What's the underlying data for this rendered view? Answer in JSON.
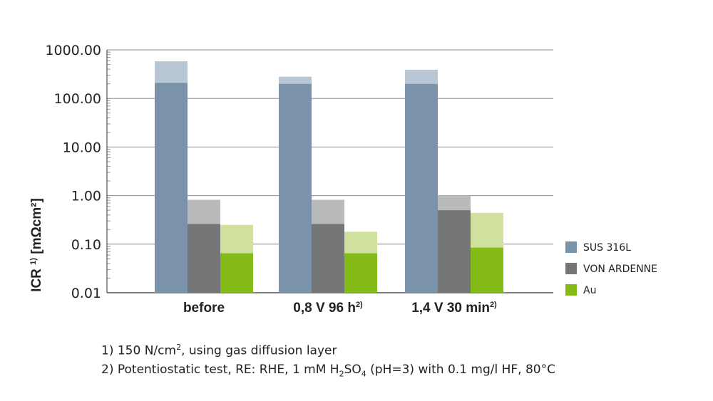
{
  "chart_data": {
    "type": "bar",
    "ylabel": "ICR",
    "ylabel_sup": "1)",
    "ylabel_unit": "[mΩcm²]",
    "yscale": "log",
    "ylim": [
      0.01,
      1000
    ],
    "yticks": [
      {
        "value": 1000,
        "label": "1000.00"
      },
      {
        "value": 100,
        "label": "100.00"
      },
      {
        "value": 10,
        "label": "10.00"
      },
      {
        "value": 1,
        "label": "1.00"
      },
      {
        "value": 0.1,
        "label": "0.10"
      },
      {
        "value": 0.01,
        "label": "0.01"
      }
    ],
    "categories": [
      {
        "label": "before",
        "sup": ""
      },
      {
        "label": "0,8 V 96 h",
        "sup": "2)"
      },
      {
        "label": "1,4 V 30 min",
        "sup": "2)"
      }
    ],
    "series": [
      {
        "name": "SUS 316L",
        "color": "#7a93ab",
        "range_color": "#b9c7d4",
        "values": [
          210,
          200,
          200
        ],
        "max_values": [
          580,
          280,
          390
        ]
      },
      {
        "name": "VON ARDENNE",
        "color": "#747677",
        "range_color": "#b9babb",
        "values": [
          0.26,
          0.26,
          0.5
        ],
        "max_values": [
          0.82,
          0.82,
          1.0
        ]
      },
      {
        "name": "Au",
        "color": "#85bb18",
        "range_color": "#cfe19d",
        "values": [
          0.065,
          0.065,
          0.085
        ],
        "max_values": [
          0.25,
          0.18,
          0.44
        ]
      }
    ],
    "legend_position": "right",
    "grid": "horizontal"
  },
  "footnotes": {
    "n1_prefix": "1) 150 N/cm",
    "n1_sup": "2",
    "n1_suffix": ", using gas diffusion layer",
    "n2_prefix": "2) Potentiostatic test, RE: RHE, 1 mM H",
    "n2_sub1": "2",
    "n2_mid": "SO",
    "n2_sub2": "4",
    "n2_suffix": " (pH=3) with 0.1 mg/l HF, 80°C"
  }
}
